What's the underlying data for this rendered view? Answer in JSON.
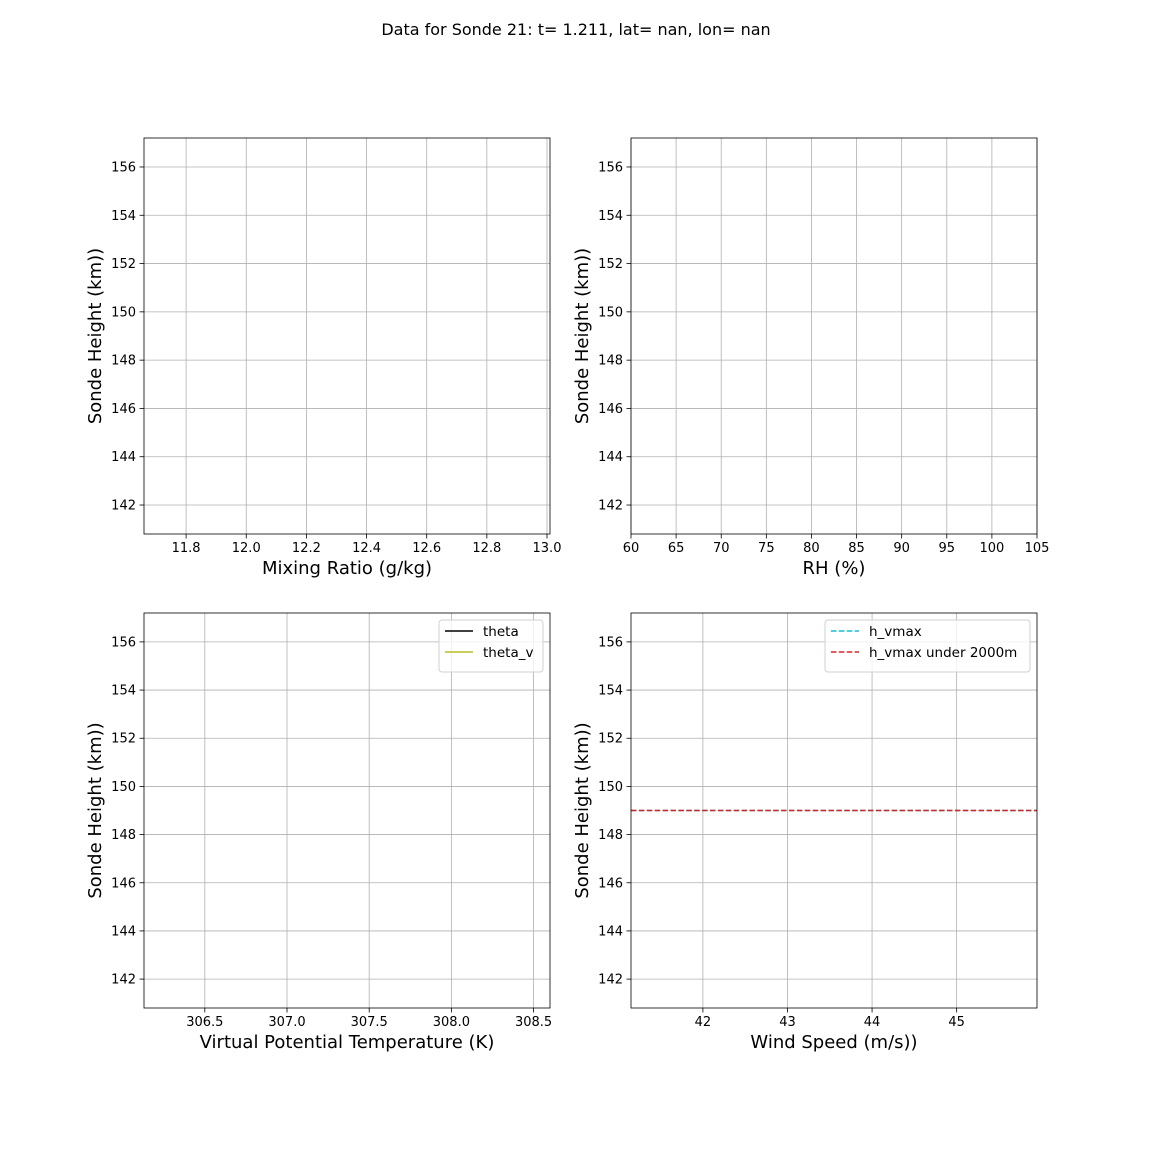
{
  "title": "Data for Sonde 21: t= 1.211, lat= nan, lon= nan",
  "chart_data": [
    {
      "type": "line",
      "xlabel": "Mixing Ratio (g/kg)",
      "ylabel": "Sonde Height (km))",
      "xlim": [
        11.66,
        13.01
      ],
      "ylim": [
        140.8,
        157.2
      ],
      "xticks": [
        11.8,
        12.0,
        12.2,
        12.4,
        12.6,
        12.8,
        13.0
      ],
      "xtick_labels": [
        "11.8",
        "12.0",
        "12.2",
        "12.4",
        "12.6",
        "12.8",
        "13.0"
      ],
      "yticks": [
        142,
        144,
        146,
        148,
        150,
        152,
        154,
        156
      ],
      "ytick_labels": [
        "142",
        "144",
        "146",
        "148",
        "150",
        "152",
        "154",
        "156"
      ],
      "grid": true,
      "series": [],
      "hlines": [],
      "legend": null
    },
    {
      "type": "line",
      "xlabel": "RH (%)",
      "ylabel": "Sonde Height (km))",
      "xlim": [
        60,
        105
      ],
      "ylim": [
        140.8,
        157.2
      ],
      "xticks": [
        60,
        65,
        70,
        75,
        80,
        85,
        90,
        95,
        100,
        105
      ],
      "xtick_labels": [
        "60",
        "65",
        "70",
        "75",
        "80",
        "85",
        "90",
        "95",
        "100",
        "105"
      ],
      "yticks": [
        142,
        144,
        146,
        148,
        150,
        152,
        154,
        156
      ],
      "ytick_labels": [
        "142",
        "144",
        "146",
        "148",
        "150",
        "152",
        "154",
        "156"
      ],
      "grid": true,
      "series": [],
      "hlines": [],
      "legend": null
    },
    {
      "type": "line",
      "xlabel": "Virtual Potential Temperature (K)",
      "ylabel": "Sonde Height (km))",
      "xlim": [
        306.13,
        308.6
      ],
      "ylim": [
        140.8,
        157.2
      ],
      "xticks": [
        306.5,
        307.0,
        307.5,
        308.0,
        308.5
      ],
      "xtick_labels": [
        "306.5",
        "307.0",
        "307.5",
        "308.0",
        "308.5"
      ],
      "yticks": [
        142,
        144,
        146,
        148,
        150,
        152,
        154,
        156
      ],
      "ytick_labels": [
        "142",
        "144",
        "146",
        "148",
        "150",
        "152",
        "154",
        "156"
      ],
      "grid": true,
      "series": [
        {
          "name": "theta",
          "color": "#000000",
          "dash": "solid",
          "values": []
        },
        {
          "name": "theta_v",
          "color": "#bcbd22",
          "dash": "solid",
          "values": []
        }
      ],
      "hlines": [],
      "legend": "upper right"
    },
    {
      "type": "line",
      "xlabel": "Wind Speed (m/s))",
      "ylabel": "Sonde Height (km))",
      "xlim": [
        41.15,
        45.95
      ],
      "ylim": [
        140.8,
        157.2
      ],
      "xticks": [
        42,
        43,
        44,
        45
      ],
      "xtick_labels": [
        "42",
        "43",
        "44",
        "45"
      ],
      "yticks": [
        142,
        144,
        146,
        148,
        150,
        152,
        154,
        156
      ],
      "ytick_labels": [
        "142",
        "144",
        "146",
        "148",
        "150",
        "152",
        "154",
        "156"
      ],
      "grid": true,
      "series": [
        {
          "name": "h_vmax",
          "color": "#17becf",
          "dash": "dashed",
          "y": 149
        },
        {
          "name": "h_vmax under 2000m",
          "color": "#d62728",
          "dash": "dashed",
          "y": 149
        }
      ],
      "hlines": [
        149,
        149
      ],
      "legend": "upper right"
    }
  ]
}
